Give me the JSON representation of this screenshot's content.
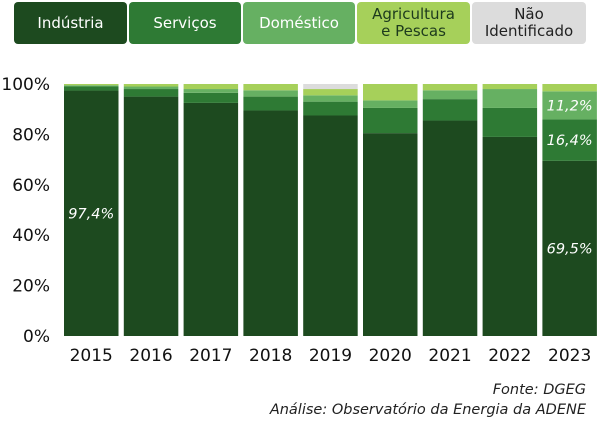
{
  "legend": [
    {
      "label": "Indústria",
      "color": "#1d4a1f",
      "text_color": "#ffffff"
    },
    {
      "label": "Serviços",
      "color": "#2e7a34",
      "text_color": "#ffffff"
    },
    {
      "label": "Doméstico",
      "color": "#66b062",
      "text_color": "#ffffff"
    },
    {
      "label": "Agricultura\ne Pescas",
      "color": "#a6d05a",
      "text_color": "#1d3a1d"
    },
    {
      "label": "Não\nIdentificado",
      "color": "#dcdcdc",
      "text_color": "#222222"
    }
  ],
  "chart_data": {
    "type": "bar",
    "stacked": true,
    "categories": [
      "2015",
      "2016",
      "2017",
      "2018",
      "2019",
      "2020",
      "2021",
      "2022",
      "2023"
    ],
    "ylim": [
      0,
      100
    ],
    "yticks": [
      "0%",
      "20%",
      "40%",
      "60%",
      "80%",
      "100%"
    ],
    "series": [
      {
        "name": "Indústria",
        "color": "#1d4a1f",
        "values": [
          97.4,
          95,
          92.5,
          89.5,
          87.5,
          80.5,
          85.5,
          79,
          69.5
        ]
      },
      {
        "name": "Serviços",
        "color": "#2e7a34",
        "values": [
          1.6,
          3,
          4,
          5.5,
          5.5,
          10,
          8.5,
          11.5,
          16.4
        ]
      },
      {
        "name": "Doméstico",
        "color": "#66b062",
        "values": [
          0.5,
          1,
          1.5,
          2.5,
          2.5,
          3,
          3.5,
          7.5,
          11.2
        ]
      },
      {
        "name": "Agricultura e Pescas",
        "color": "#a6d05a",
        "values": [
          0.5,
          1,
          2,
          2.5,
          2.5,
          6.5,
          2.5,
          2,
          2.9
        ]
      },
      {
        "name": "Não Identificado",
        "color": "#dcdcdc",
        "values": [
          0,
          0,
          0,
          0,
          2,
          0,
          0,
          0,
          0
        ]
      }
    ],
    "data_labels": [
      {
        "category": "2015",
        "series": "Indústria",
        "text": "97,4%"
      },
      {
        "category": "2023",
        "series": "Indústria",
        "text": "69,5%"
      },
      {
        "category": "2023",
        "series": "Serviços",
        "text": "16,4%"
      },
      {
        "category": "2023",
        "series": "Doméstico",
        "text": "11,2%"
      }
    ]
  },
  "source": "Fonte: DGEG",
  "analysis": "Análise: Observatório da Energia da ADENE"
}
